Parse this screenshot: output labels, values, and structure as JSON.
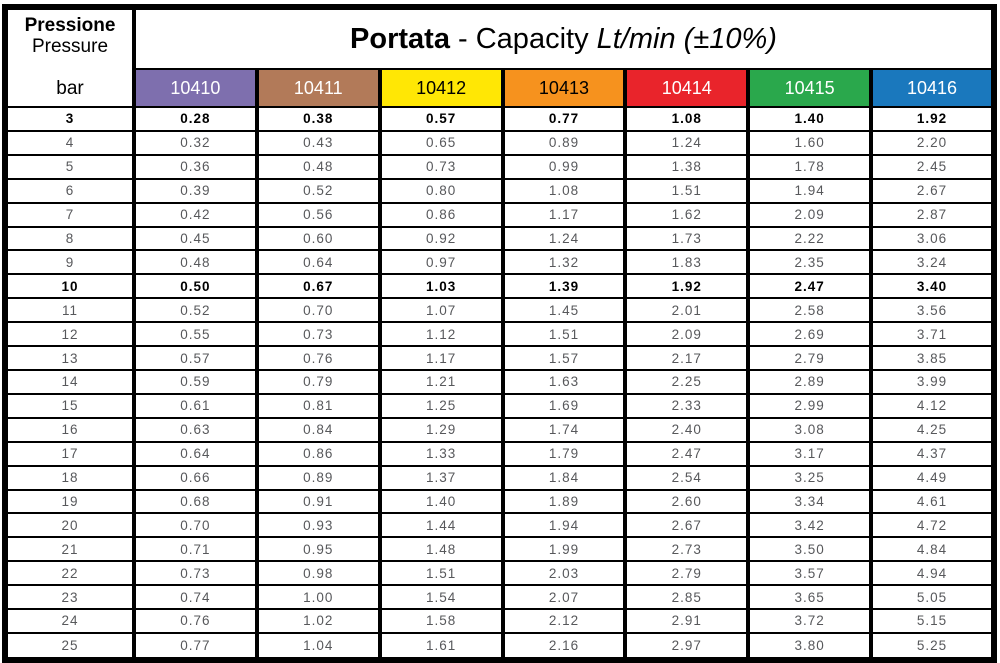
{
  "chart_data": {
    "type": "table",
    "title": {
      "bold": "Portata",
      "normal": " - Capacity ",
      "italic": "Lt/min (±10%)"
    },
    "row_header": {
      "label_italian": "Pressione",
      "label_english": "Pressure",
      "unit": "bar"
    },
    "columns": [
      {
        "label": "10410",
        "color": "#7e6fae",
        "text_color": "#ffffff"
      },
      {
        "label": "10411",
        "color": "#b27a59",
        "text_color": "#ffffff"
      },
      {
        "label": "10412",
        "color": "#ffe705",
        "text_color": "#000000"
      },
      {
        "label": "10413",
        "color": "#f6921e",
        "text_color": "#000000"
      },
      {
        "label": "10414",
        "color": "#e9242b",
        "text_color": "#ffffff"
      },
      {
        "label": "10415",
        "color": "#2aa84c",
        "text_color": "#ffffff"
      },
      {
        "label": "10416",
        "color": "#1a78bd",
        "text_color": "#ffffff"
      }
    ],
    "rows": [
      {
        "pressure": "3",
        "bold": true,
        "values": [
          "0.28",
          "0.38",
          "0.57",
          "0.77",
          "1.08",
          "1.40",
          "1.92"
        ]
      },
      {
        "pressure": "4",
        "bold": false,
        "values": [
          "0.32",
          "0.43",
          "0.65",
          "0.89",
          "1.24",
          "1.60",
          "2.20"
        ]
      },
      {
        "pressure": "5",
        "bold": false,
        "values": [
          "0.36",
          "0.48",
          "0.73",
          "0.99",
          "1.38",
          "1.78",
          "2.45"
        ]
      },
      {
        "pressure": "6",
        "bold": false,
        "values": [
          "0.39",
          "0.52",
          "0.80",
          "1.08",
          "1.51",
          "1.94",
          "2.67"
        ]
      },
      {
        "pressure": "7",
        "bold": false,
        "values": [
          "0.42",
          "0.56",
          "0.86",
          "1.17",
          "1.62",
          "2.09",
          "2.87"
        ]
      },
      {
        "pressure": "8",
        "bold": false,
        "values": [
          "0.45",
          "0.60",
          "0.92",
          "1.24",
          "1.73",
          "2.22",
          "3.06"
        ]
      },
      {
        "pressure": "9",
        "bold": false,
        "values": [
          "0.48",
          "0.64",
          "0.97",
          "1.32",
          "1.83",
          "2.35",
          "3.24"
        ]
      },
      {
        "pressure": "10",
        "bold": true,
        "values": [
          "0.50",
          "0.67",
          "1.03",
          "1.39",
          "1.92",
          "2.47",
          "3.40"
        ]
      },
      {
        "pressure": "11",
        "bold": false,
        "values": [
          "0.52",
          "0.70",
          "1.07",
          "1.45",
          "2.01",
          "2.58",
          "3.56"
        ]
      },
      {
        "pressure": "12",
        "bold": false,
        "values": [
          "0.55",
          "0.73",
          "1.12",
          "1.51",
          "2.09",
          "2.69",
          "3.71"
        ]
      },
      {
        "pressure": "13",
        "bold": false,
        "values": [
          "0.57",
          "0.76",
          "1.17",
          "1.57",
          "2.17",
          "2.79",
          "3.85"
        ]
      },
      {
        "pressure": "14",
        "bold": false,
        "values": [
          "0.59",
          "0.79",
          "1.21",
          "1.63",
          "2.25",
          "2.89",
          "3.99"
        ]
      },
      {
        "pressure": "15",
        "bold": false,
        "values": [
          "0.61",
          "0.81",
          "1.25",
          "1.69",
          "2.33",
          "2.99",
          "4.12"
        ]
      },
      {
        "pressure": "16",
        "bold": false,
        "values": [
          "0.63",
          "0.84",
          "1.29",
          "1.74",
          "2.40",
          "3.08",
          "4.25"
        ]
      },
      {
        "pressure": "17",
        "bold": false,
        "values": [
          "0.64",
          "0.86",
          "1.33",
          "1.79",
          "2.47",
          "3.17",
          "4.37"
        ]
      },
      {
        "pressure": "18",
        "bold": false,
        "values": [
          "0.66",
          "0.89",
          "1.37",
          "1.84",
          "2.54",
          "3.25",
          "4.49"
        ]
      },
      {
        "pressure": "19",
        "bold": false,
        "values": [
          "0.68",
          "0.91",
          "1.40",
          "1.89",
          "2.60",
          "3.34",
          "4.61"
        ]
      },
      {
        "pressure": "20",
        "bold": false,
        "values": [
          "0.70",
          "0.93",
          "1.44",
          "1.94",
          "2.67",
          "3.42",
          "4.72"
        ]
      },
      {
        "pressure": "21",
        "bold": false,
        "values": [
          "0.71",
          "0.95",
          "1.48",
          "1.99",
          "2.73",
          "3.50",
          "4.84"
        ]
      },
      {
        "pressure": "22",
        "bold": false,
        "values": [
          "0.73",
          "0.98",
          "1.51",
          "2.03",
          "2.79",
          "3.57",
          "4.94"
        ]
      },
      {
        "pressure": "23",
        "bold": false,
        "values": [
          "0.74",
          "1.00",
          "1.54",
          "2.07",
          "2.85",
          "3.65",
          "5.05"
        ]
      },
      {
        "pressure": "24",
        "bold": false,
        "values": [
          "0.76",
          "1.02",
          "1.58",
          "2.12",
          "2.91",
          "3.72",
          "5.15"
        ]
      },
      {
        "pressure": "25",
        "bold": false,
        "values": [
          "0.77",
          "1.04",
          "1.61",
          "2.16",
          "2.97",
          "3.80",
          "5.25"
        ]
      }
    ]
  }
}
